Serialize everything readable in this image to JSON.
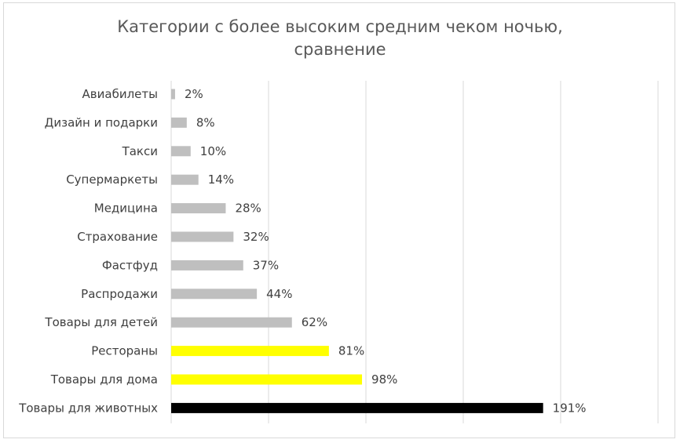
{
  "chart_data": {
    "type": "bar",
    "orientation": "horizontal",
    "title_lines": [
      "Категории с более высоким средним чеком ночью,",
      "сравнение"
    ],
    "categories": [
      "Авиабилеты",
      "Дизайн и подарки",
      "Такси",
      "Супермаркеты",
      "Медицина",
      "Страхование",
      "Фастфуд",
      "Распродажи",
      "Товары для детей",
      "Рестораны",
      "Товары для дома",
      "Товары для животных"
    ],
    "values": [
      2,
      8,
      10,
      14,
      28,
      32,
      37,
      44,
      62,
      81,
      98,
      191
    ],
    "value_labels": [
      "2%",
      "8%",
      "10%",
      "14%",
      "28%",
      "32%",
      "37%",
      "44%",
      "62%",
      "81%",
      "98%",
      "191%"
    ],
    "bar_colors": [
      "#bfbfbf",
      "#bfbfbf",
      "#bfbfbf",
      "#bfbfbf",
      "#bfbfbf",
      "#bfbfbf",
      "#bfbfbf",
      "#bfbfbf",
      "#bfbfbf",
      "#ffff00",
      "#ffff00",
      "#000000"
    ],
    "xlim": [
      0,
      250
    ],
    "x_gridlines": [
      0,
      50,
      100,
      150,
      200,
      250
    ],
    "grid": true,
    "legend": "none"
  }
}
